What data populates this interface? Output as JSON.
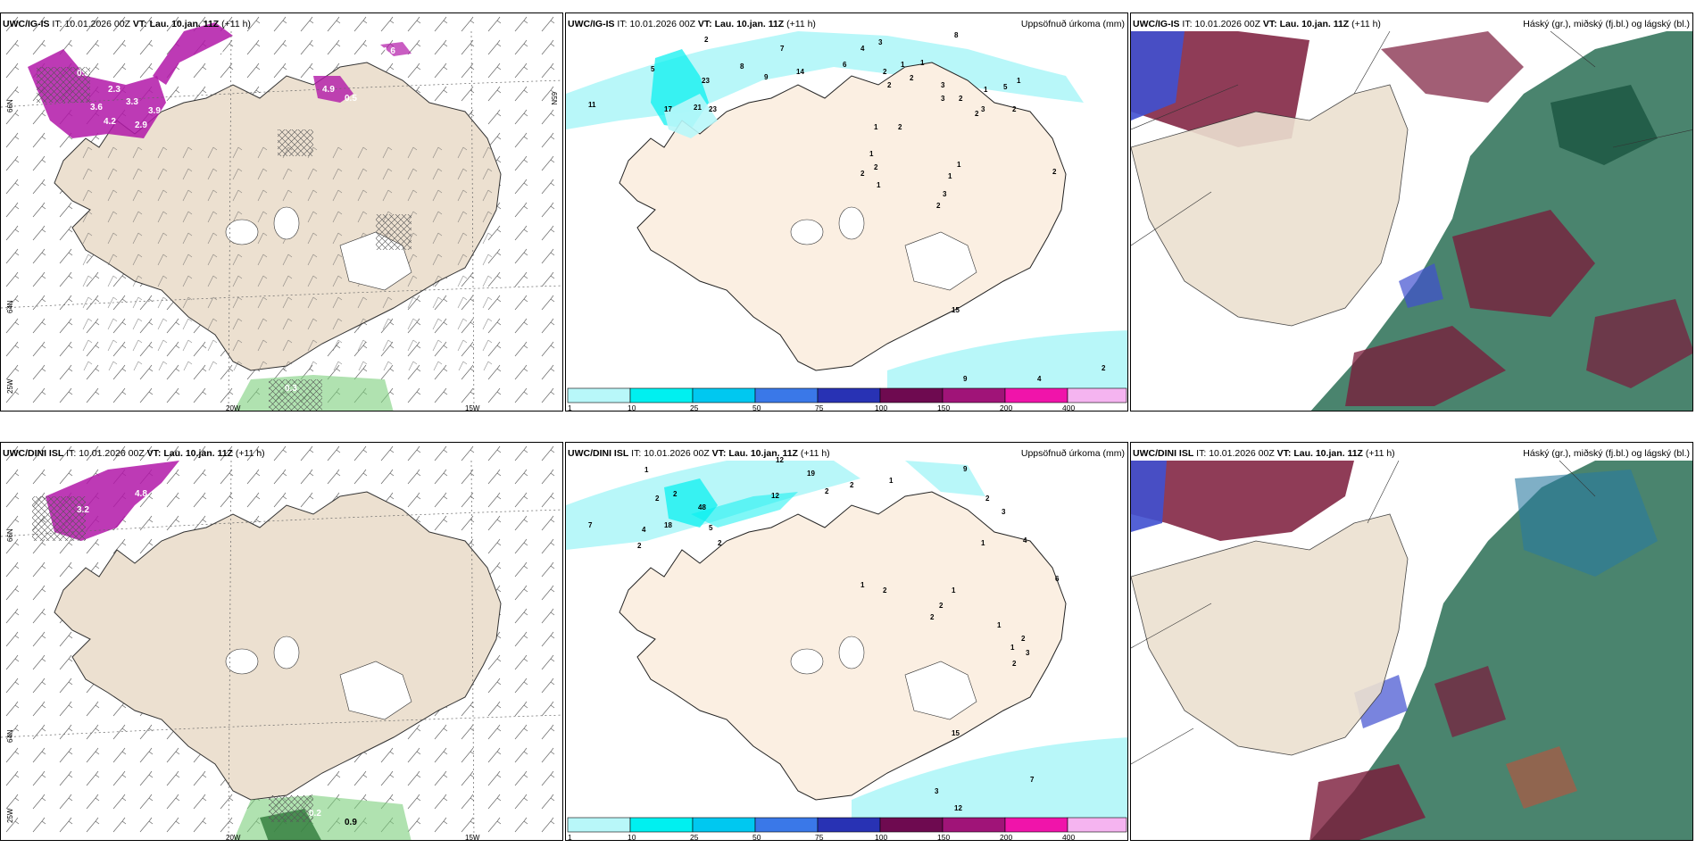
{
  "rows": [
    {
      "model": "UWC/IG-IS",
      "it_label": "IT:",
      "it": "10.01.2026 00Z",
      "vt_label": "VT:",
      "vt": "Lau. 10.jan. 11Z",
      "lead": "(+11 h)"
    },
    {
      "model": "UWC/DINI ISL",
      "it_label": "IT:",
      "it": "10.01.2026 00Z",
      "vt_label": "VT:",
      "vt": "Lau. 10.jan. 11Z",
      "lead": "(+11 h)"
    }
  ],
  "precip_title": "Uppsöfnuð úrkoma (mm)",
  "cloud_title": "Háský (gr.), miðský (fj.bl.) og lágský (bl.)",
  "colorbar": {
    "ticks": [
      "1",
      "10",
      "25",
      "50",
      "75",
      "100",
      "150",
      "200",
      "400"
    ],
    "colors": [
      "#b8f7f9",
      "#00f0f0",
      "#00c8f0",
      "#3a78e8",
      "#2832b4",
      "#6e0a50",
      "#a01478",
      "#f014aa",
      "#f5b4f0"
    ]
  },
  "axis_labels": {
    "lat_66": "66N",
    "lat_64": "64N",
    "lat_65": "65N",
    "lon_25": "25W",
    "lon_20": "20W",
    "lon_15": "15W"
  },
  "wind_values_top": [
    "0.3",
    "4.8",
    "2.3",
    "3.3",
    "3.6",
    "4.2",
    "2.9",
    "3.9",
    "4.9",
    "0.5",
    "1.6",
    "0.3"
  ],
  "wind_values_bottom": [
    "4.8",
    "2.1",
    "3.2",
    "0.2",
    "0.9"
  ],
  "precip_values_top": [
    "2",
    "7",
    "4",
    "3",
    "8",
    "5",
    "8",
    "9",
    "14",
    "6",
    "2",
    "1",
    "11",
    "23",
    "17",
    "21",
    "23",
    "2",
    "2",
    "1",
    "3",
    "2",
    "1",
    "3",
    "5",
    "3",
    "2",
    "1",
    "1",
    "2",
    "1",
    "2",
    "2",
    "1",
    "3",
    "2",
    "1",
    "1",
    "2",
    "2",
    "15",
    "9",
    "4",
    "2"
  ],
  "precip_values_bottom": [
    "1",
    "12",
    "19",
    "2",
    "1",
    "9",
    "2",
    "7",
    "12",
    "2",
    "2",
    "48",
    "4",
    "18",
    "2",
    "5",
    "2",
    "3",
    "2",
    "1",
    "4",
    "6",
    "1",
    "2",
    "1",
    "2",
    "2",
    "1",
    "2",
    "1",
    "3",
    "2",
    "15",
    "7",
    "3",
    "12"
  ],
  "colors": {
    "land": "#ece0d0",
    "land_light": "#fbefe2",
    "ocean": "#ffffff",
    "purple": "#b218a8",
    "precip_cyan": "#b8f7f9",
    "high_cloud": "#7b1a3a",
    "mid_cloud": "#2a6e55",
    "low_cloud": "#4050d0"
  }
}
